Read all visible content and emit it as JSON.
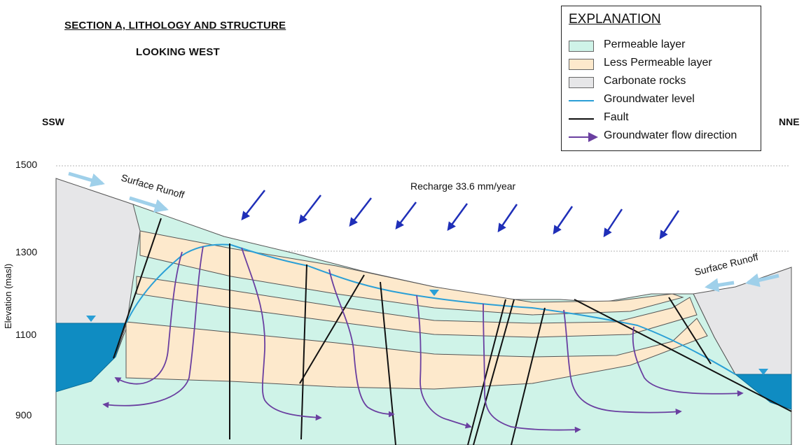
{
  "title": {
    "main": "SECTION A, LITHOLOGY AND STRUCTURE",
    "sub": "LOOKING WEST"
  },
  "directions": {
    "left": "SSW",
    "right": "NNE"
  },
  "y_axis": {
    "label": "Elevation (masl)",
    "ticks": [
      "1500",
      "1300",
      "1100",
      "900"
    ]
  },
  "annotations": {
    "recharge": "Recharge 33.6 mm/year",
    "runoff_left": "Surface Runoff",
    "runoff_right": "Surface Runoff"
  },
  "legend": {
    "title": "EXPLANATION",
    "items": [
      {
        "label": "Permeable layer",
        "symbol": "box",
        "color": "#cff3e8"
      },
      {
        "label": "Less Permeable layer",
        "symbol": "box",
        "color": "#fde9cc"
      },
      {
        "label": "Carbonate rocks",
        "symbol": "box",
        "color": "#e6e6e8"
      },
      {
        "label": "Groundwater level",
        "symbol": "line",
        "color": "#2a9fd6"
      },
      {
        "label": "Fault",
        "symbol": "line",
        "color": "#111111"
      },
      {
        "label": "Groundwater flow direction",
        "symbol": "arrow",
        "color": "#6a3fa0"
      }
    ]
  },
  "colors": {
    "permeable": "#cff3e8",
    "less_permeable": "#fde9cc",
    "carbonate": "#e6e6e8",
    "water": "#0f8cc2",
    "groundwater_line": "#2a9fd6",
    "fault": "#111111",
    "flow": "#6a3fa0",
    "recharge_arrow": "#1f2fb8",
    "runoff_arrow": "#9fd0ea"
  }
}
